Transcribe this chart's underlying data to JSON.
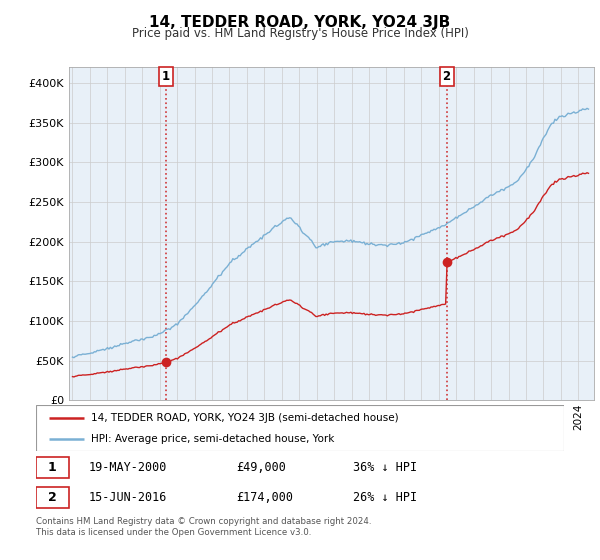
{
  "title": "14, TEDDER ROAD, YORK, YO24 3JB",
  "subtitle": "Price paid vs. HM Land Registry's House Price Index (HPI)",
  "ylabel_ticks": [
    "£0",
    "£50K",
    "£100K",
    "£150K",
    "£200K",
    "£250K",
    "£300K",
    "£350K",
    "£400K"
  ],
  "ytick_values": [
    0,
    50000,
    100000,
    150000,
    200000,
    250000,
    300000,
    350000,
    400000
  ],
  "ylim": [
    0,
    420000
  ],
  "xlim_start": 1994.8,
  "xlim_end": 2024.9,
  "hpi_color": "#7ab0d4",
  "sale_color": "#cc2222",
  "dashed_color": "#cc2222",
  "bg_fill_color": "#e8f0f8",
  "marker1_date": 2000.37,
  "marker1_price": 49000,
  "marker2_date": 2016.45,
  "marker2_price": 174000,
  "legend_label1": "14, TEDDER ROAD, YORK, YO24 3JB (semi-detached house)",
  "legend_label2": "HPI: Average price, semi-detached house, York",
  "note1_date": "19-MAY-2000",
  "note1_price": "£49,000",
  "note1_pct": "36% ↓ HPI",
  "note2_date": "15-JUN-2016",
  "note2_price": "£174,000",
  "note2_pct": "26% ↓ HPI",
  "footnote": "Contains HM Land Registry data © Crown copyright and database right 2024.\nThis data is licensed under the Open Government Licence v3.0.",
  "background_color": "#ffffff",
  "grid_color": "#cccccc"
}
